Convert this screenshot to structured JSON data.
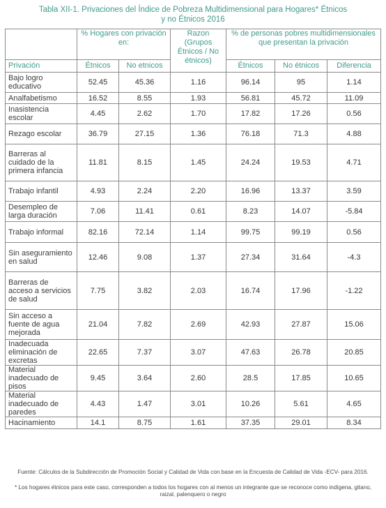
{
  "title_line1": "Tabla XII-1. Privaciones del Índice de Pobreza Multidimensional para Hogares* Étnicos",
  "title_line2": "y no Étnicos 2016",
  "group_headers": {
    "hogares": "% Hogares con privación en:",
    "razon": "Razon (Grupos Étnicos / No étnicos)",
    "personas": "% de personas pobres multidimensionales que presentan la privación"
  },
  "columns": [
    "Privación",
    "Étnicos",
    "No etnicos",
    "",
    "Étnicos",
    "No étnicos",
    "Diferencia"
  ],
  "rows": [
    {
      "label": "Bajo logro educativo",
      "h_et": "52.45",
      "h_no": "45.36",
      "razon": "1.16",
      "p_et": "96.14",
      "p_no": "95",
      "dif": "1.14"
    },
    {
      "label": "Analfabetismo",
      "h_et": "16.52",
      "h_no": "8.55",
      "razon": "1.93",
      "p_et": "56.81",
      "p_no": "45.72",
      "dif": "11.09"
    },
    {
      "label": "Inasistencia escolar",
      "h_et": "4.45",
      "h_no": "2.62",
      "razon": "1.70",
      "p_et": "17.82",
      "p_no": "17.26",
      "dif": "0.56"
    },
    {
      "label": "Rezago escolar",
      "h_et": "36.79",
      "h_no": "27.15",
      "razon": "1.36",
      "p_et": "76.18",
      "p_no": "71.3",
      "dif": "4.88"
    },
    {
      "label": "Barreras al cuidado de la primera infancia",
      "h_et": "11.81",
      "h_no": "8.15",
      "razon": "1.45",
      "p_et": "24.24",
      "p_no": "19.53",
      "dif": "4.71"
    },
    {
      "label": "Trabajo infantil",
      "h_et": "4.93",
      "h_no": "2.24",
      "razon": "2.20",
      "p_et": "16.96",
      "p_no": "13.37",
      "dif": "3.59"
    },
    {
      "label": "Desempleo de larga duración",
      "h_et": "7.06",
      "h_no": "11.41",
      "razon": "0.61",
      "p_et": "8.23",
      "p_no": "14.07",
      "dif": "-5.84"
    },
    {
      "label": "Trabajo informal",
      "h_et": "82.16",
      "h_no": "72.14",
      "razon": "1.14",
      "p_et": "99.75",
      "p_no": "99.19",
      "dif": "0.56"
    },
    {
      "label": "Sin aseguramiento en salud",
      "h_et": "12.46",
      "h_no": "9.08",
      "razon": "1.37",
      "p_et": "27.34",
      "p_no": "31.64",
      "dif": "-4.3"
    },
    {
      "label": "Barreras de acceso a servicios de salud",
      "h_et": "7.75",
      "h_no": "3.82",
      "razon": "2.03",
      "p_et": "16.74",
      "p_no": "17.96",
      "dif": "-1.22"
    },
    {
      "label": "Sin acceso a fuente de agua mejorada",
      "h_et": "21.04",
      "h_no": "7.82",
      "razon": "2.69",
      "p_et": "42.93",
      "p_no": "27.87",
      "dif": "15.06"
    },
    {
      "label": "Inadecuada eliminación de excretas",
      "h_et": "22.65",
      "h_no": "7.37",
      "razon": "3.07",
      "p_et": "47.63",
      "p_no": "26.78",
      "dif": "20.85"
    },
    {
      "label": "Material inadecuado de pisos",
      "h_et": "9.45",
      "h_no": "3.64",
      "razon": "2.60",
      "p_et": "28.5",
      "p_no": "17.85",
      "dif": "10.65"
    },
    {
      "label": "Material inadecuado de paredes",
      "h_et": "4.43",
      "h_no": "1.47",
      "razon": "3.01",
      "p_et": "10.26",
      "p_no": "5.61",
      "dif": "4.65"
    },
    {
      "label": "Hacinamiento",
      "h_et": "14.1",
      "h_no": "8.75",
      "razon": "1.61",
      "p_et": "37.35",
      "p_no": "29.01",
      "dif": "8.34"
    }
  ],
  "source_note": "Fuente: Cálculos de la Subdirección de Promoción Social y Calidad de Vida con base en la Encuesta de Calidad de Vida -ECV- para 2016.",
  "ethnic_note": "* Los hogares étnicos para este caso, corresponden a todos los hogares con al menos un integrante que se reconoce como indígena, gitano, raizal, palenquero o negro"
}
